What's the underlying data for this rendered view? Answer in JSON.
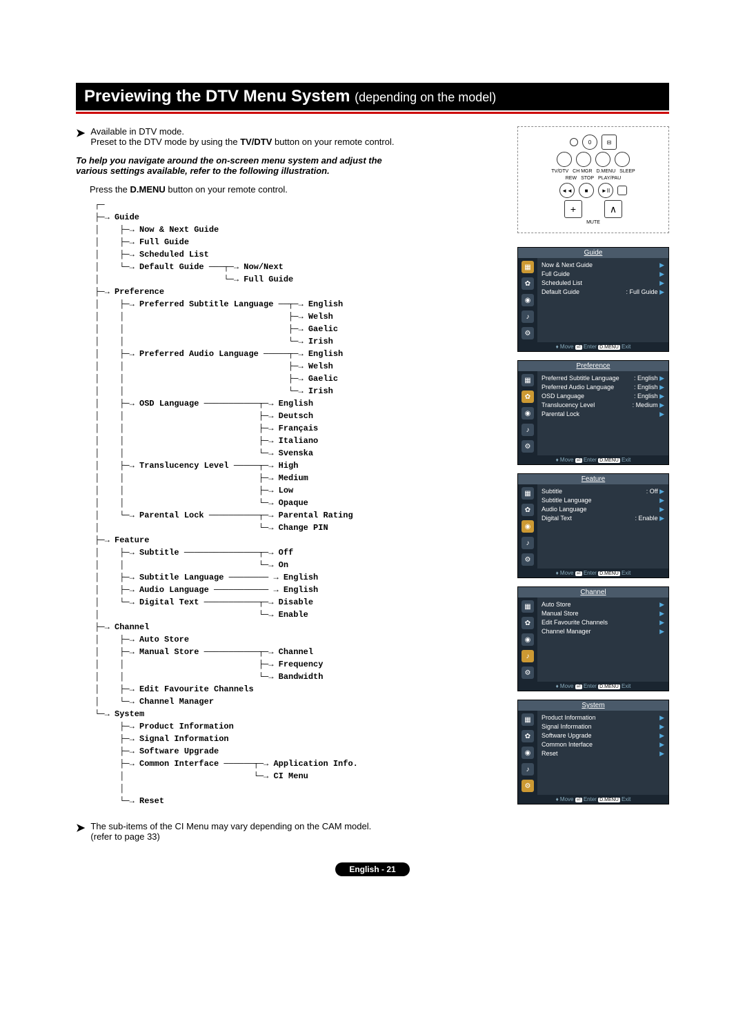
{
  "title_main": "Previewing the DTV Menu System",
  "title_sub": "(depending on the model)",
  "intro_line1": "Available in DTV mode.",
  "intro_line2a": "Preset to the DTV mode by using the ",
  "intro_line2b": "TV/DTV",
  "intro_line2c": " button on your remote control.",
  "help1": "To help you navigate around the on-screen menu system and adjust the",
  "help2": "various settings available, refer to the following illustration.",
  "tree_intro_a": "Press the ",
  "tree_intro_b": "D.MENU",
  "tree_intro_c": " button on your remote control.",
  "tree_text": " ┌─\n ├─→ Guide\n │    ├─→ Now & Next Guide\n │    ├─→ Full Guide\n │    ├─→ Scheduled List\n │    └─→ Default Guide ───┬─→ Now/Next\n │                         └─→ Full Guide\n ├─→ Preference\n │    ├─→ Preferred Subtitle Language ──┬─→ English\n │    │                                 ├─→ Welsh\n │    │                                 ├─→ Gaelic\n │    │                                 └─→ Irish\n │    ├─→ Preferred Audio Language ─────┬─→ English\n │    │                                 ├─→ Welsh\n │    │                                 ├─→ Gaelic\n │    │                                 └─→ Irish\n │    ├─→ OSD Language ───────────┬─→ English\n │    │                           ├─→ Deutsch\n │    │                           ├─→ Français\n │    │                           ├─→ Italiano\n │    │                           └─→ Svenska\n │    ├─→ Translucency Level ─────┬─→ High\n │    │                           ├─→ Medium\n │    │                           ├─→ Low\n │    │                           └─→ Opaque\n │    └─→ Parental Lock ──────────┬─→ Parental Rating\n │                                └─→ Change PIN\n ├─→ Feature\n │    ├─→ Subtitle ───────────────┬─→ Off\n │    │                           └─→ On\n │    ├─→ Subtitle Language ──────── → English\n │    ├─→ Audio Language ─────────── → English\n │    └─→ Digital Text ───────────┬─→ Disable\n │                                └─→ Enable\n ├─→ Channel\n │    ├─→ Auto Store\n │    ├─→ Manual Store ───────────┬─→ Channel\n │    │                           ├─→ Frequency\n │    │                           └─→ Bandwidth\n │    ├─→ Edit Favourite Channels\n │    └─→ Channel Manager\n └─→ System\n      ├─→ Product Information\n      ├─→ Signal Information\n      ├─→ Software Upgrade\n      ├─→ Common Interface ──────┬─→ Application Info.\n      │                          └─→ CI Menu\n      │\n      └─→ Reset",
  "footnote1": "The sub-items of the CI Menu may vary depending on the CAM model.",
  "footnote2": "(refer to page 33)",
  "page_label": "English - 21",
  "remote": {
    "btn_0": "0",
    "labels": [
      "TV/DTV",
      "CH MGR",
      "D.MENU",
      "SLEEP"
    ],
    "labels2": [
      "REW",
      "STOP",
      "PLAY/PAU"
    ],
    "rew": "◄◄",
    "stop": "■",
    "play": "►II",
    "plus": "+",
    "up": "∧",
    "mute": "MUTE"
  },
  "osd_footer": {
    "move": "Move",
    "enter": "Enter",
    "exit": "Exit"
  },
  "osd_panels": [
    {
      "title": "Guide",
      "active": 0,
      "items": [
        {
          "l": "Now & Next Guide",
          "r": ""
        },
        {
          "l": "Full Guide",
          "r": ""
        },
        {
          "l": "Scheduled List",
          "r": ""
        },
        {
          "l": "Default Guide",
          "r": ": Full Guide"
        }
      ]
    },
    {
      "title": "Preference",
      "active": 1,
      "items": [
        {
          "l": "Preferred Subtitle Language",
          "r": ": English"
        },
        {
          "l": "Preferred Audio Language",
          "r": ": English"
        },
        {
          "l": "OSD Language",
          "r": ": English"
        },
        {
          "l": "Translucency Level",
          "r": ": Medium"
        },
        {
          "l": "Parental Lock",
          "r": ""
        }
      ]
    },
    {
      "title": "Feature",
      "active": 2,
      "items": [
        {
          "l": "Subtitle",
          "r": ": Off"
        },
        {
          "l": "Subtitle Language",
          "r": ""
        },
        {
          "l": "Audio Language",
          "r": ""
        },
        {
          "l": "Digital Text",
          "r": ": Enable"
        }
      ]
    },
    {
      "title": "Channel",
      "active": 3,
      "items": [
        {
          "l": "Auto Store",
          "r": ""
        },
        {
          "l": "Manual Store",
          "r": ""
        },
        {
          "l": "Edit Favourite Channels",
          "r": ""
        },
        {
          "l": "Channel Manager",
          "r": ""
        }
      ]
    },
    {
      "title": "System",
      "active": 4,
      "items": [
        {
          "l": "Product Information",
          "r": ""
        },
        {
          "l": "Signal Information",
          "r": ""
        },
        {
          "l": "Software Upgrade",
          "r": ""
        },
        {
          "l": "Common Interface",
          "r": ""
        },
        {
          "l": "Reset",
          "r": ""
        }
      ]
    }
  ],
  "osd_icon_glyphs": [
    "▦",
    "✿",
    "◉",
    "♪",
    "⚙"
  ]
}
